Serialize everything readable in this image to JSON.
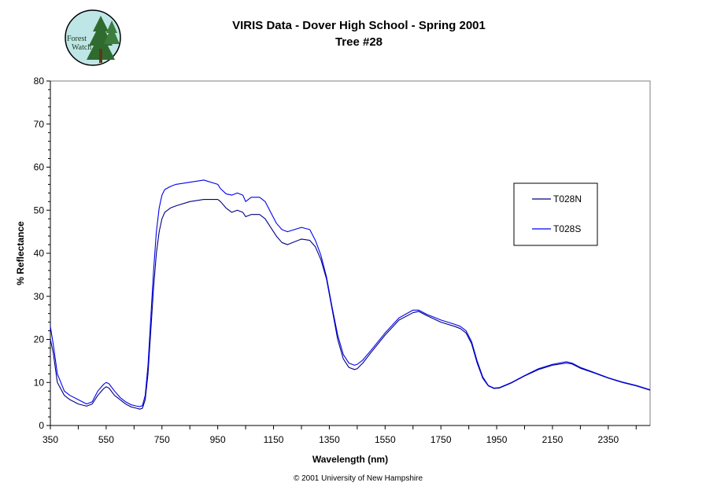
{
  "logo": {
    "line1": "Forest",
    "line2": "Watch"
  },
  "chart_data": {
    "type": "line",
    "title": "VIRIS Data - Dover High School - Spring 2001",
    "subtitle": "Tree #28",
    "xlabel": "Wavelength (nm)",
    "ylabel": "% Reflectance",
    "xlim": [
      350,
      2500
    ],
    "ylim": [
      0,
      80
    ],
    "xticks": [
      350,
      550,
      750,
      950,
      1150,
      1350,
      1550,
      1750,
      1950,
      2150,
      2350
    ],
    "yticks": [
      0,
      10,
      20,
      30,
      40,
      50,
      60,
      70,
      80
    ],
    "grid": false,
    "legend_position": "right",
    "series": [
      {
        "name": "T028N",
        "color": "#000080",
        "x": [
          350,
          360,
          375,
          400,
          420,
          450,
          480,
          500,
          520,
          540,
          550,
          560,
          580,
          600,
          620,
          640,
          660,
          670,
          680,
          690,
          700,
          710,
          720,
          730,
          740,
          750,
          760,
          780,
          800,
          850,
          900,
          950,
          960,
          980,
          1000,
          1020,
          1040,
          1050,
          1070,
          1100,
          1120,
          1140,
          1160,
          1180,
          1200,
          1250,
          1280,
          1300,
          1320,
          1340,
          1360,
          1380,
          1400,
          1420,
          1440,
          1450,
          1470,
          1500,
          1550,
          1600,
          1650,
          1670,
          1700,
          1750,
          1800,
          1820,
          1840,
          1860,
          1880,
          1900,
          1920,
          1940,
          1960,
          2000,
          2050,
          2100,
          2150,
          2200,
          2220,
          2250,
          2300,
          2350,
          2400,
          2450,
          2500
        ],
        "y": [
          20,
          17,
          10,
          7,
          6,
          5,
          4.5,
          5,
          7,
          8.5,
          9,
          8.7,
          7,
          6,
          5,
          4.3,
          4,
          3.8,
          4,
          6,
          12,
          22,
          32,
          40,
          45,
          48,
          49.5,
          50.5,
          51,
          52,
          52.5,
          52.5,
          52,
          50.5,
          49.5,
          50,
          49.5,
          48.5,
          49,
          49,
          48,
          46,
          44,
          42.5,
          42,
          43.3,
          43,
          41.5,
          38.5,
          34,
          27,
          20,
          15.5,
          13.5,
          13,
          13.2,
          14.5,
          17,
          21,
          24.5,
          26.2,
          26.5,
          25.5,
          24,
          23,
          22.5,
          21.5,
          19,
          14.5,
          11,
          9.2,
          8.6,
          8.7,
          9.8,
          11.5,
          13,
          14,
          14.5,
          14.3,
          13.3,
          12.2,
          11,
          10,
          9.2,
          8.2
        ]
      },
      {
        "name": "T028S",
        "color": "#0000ee",
        "x": [
          350,
          360,
          375,
          400,
          420,
          450,
          480,
          500,
          520,
          540,
          550,
          560,
          580,
          600,
          620,
          640,
          660,
          670,
          680,
          690,
          700,
          710,
          720,
          730,
          740,
          750,
          760,
          780,
          800,
          850,
          900,
          950,
          960,
          980,
          1000,
          1020,
          1040,
          1050,
          1070,
          1100,
          1120,
          1140,
          1160,
          1180,
          1200,
          1250,
          1280,
          1300,
          1320,
          1340,
          1360,
          1380,
          1400,
          1420,
          1440,
          1450,
          1470,
          1500,
          1550,
          1600,
          1650,
          1670,
          1700,
          1750,
          1800,
          1820,
          1840,
          1860,
          1880,
          1900,
          1920,
          1940,
          1960,
          2000,
          2050,
          2100,
          2150,
          2200,
          2220,
          2250,
          2300,
          2350,
          2400,
          2450,
          2500
        ],
        "y": [
          23,
          19,
          12,
          8,
          7,
          6,
          5,
          5.5,
          8,
          9.5,
          10,
          9.7,
          8,
          6.5,
          5.5,
          4.8,
          4.5,
          4.4,
          4.6,
          7,
          14,
          25,
          36,
          45,
          50.5,
          53.5,
          54.8,
          55.5,
          56,
          56.5,
          57,
          56,
          55,
          53.8,
          53.5,
          54,
          53.5,
          52,
          53,
          53,
          52,
          49.5,
          47,
          45.5,
          45,
          46,
          45.5,
          43,
          39.5,
          34.5,
          27.5,
          21,
          16.5,
          14.5,
          14,
          14.2,
          15.2,
          17.5,
          21.5,
          25,
          26.8,
          26.8,
          25.8,
          24.5,
          23.5,
          23,
          22,
          19.5,
          15,
          11.3,
          9.3,
          8.7,
          8.8,
          9.9,
          11.6,
          13.2,
          14.2,
          14.8,
          14.5,
          13.5,
          12.3,
          11.1,
          10.1,
          9.3,
          8.3
        ]
      }
    ]
  },
  "footer": "© 2001 University of New Hampshire"
}
